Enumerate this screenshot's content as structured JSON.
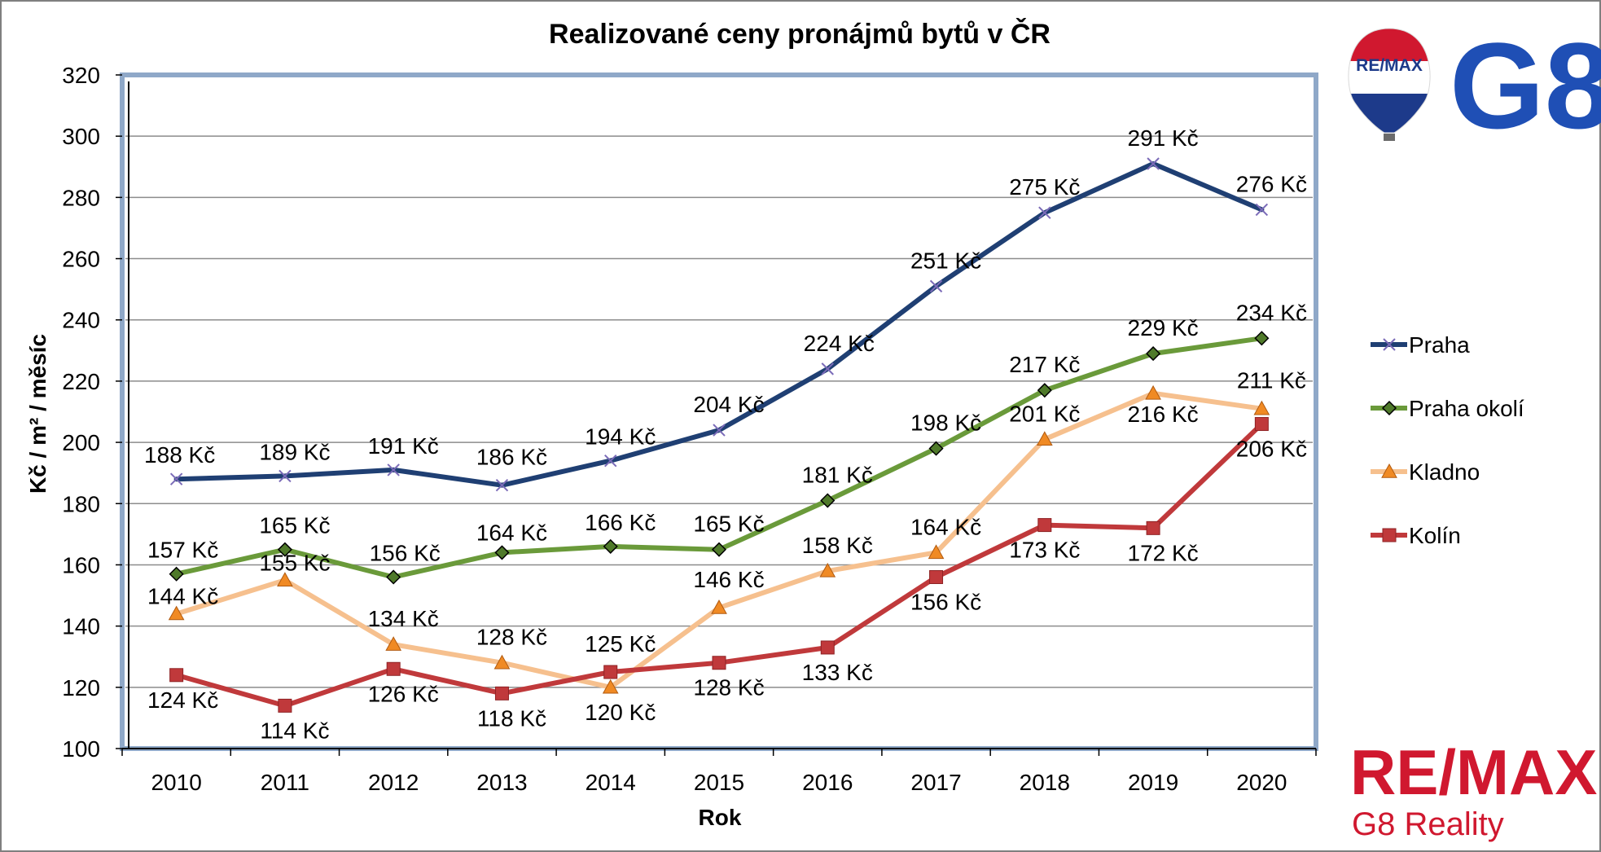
{
  "chart_data": {
    "type": "line",
    "title": "Realizované ceny pronájmů bytů v ČR",
    "xlabel": "Rok",
    "ylabel": "Kč / m² / měsíc",
    "categories": [
      "2010",
      "2011",
      "2012",
      "2013",
      "2014",
      "2015",
      "2016",
      "2017",
      "2018",
      "2019",
      "2020"
    ],
    "ylim": [
      100,
      320
    ],
    "yticks": [
      "100",
      "120",
      "140",
      "160",
      "180",
      "200",
      "220",
      "240",
      "260",
      "280",
      "300",
      "320"
    ],
    "grid": true,
    "legend_position": "right",
    "series": [
      {
        "name": "Praha",
        "color": "#1f3f73",
        "marker": "x",
        "values": [
          188,
          189,
          191,
          186,
          194,
          204,
          224,
          251,
          275,
          291,
          276
        ],
        "labels": [
          "188 Kč",
          "189 Kč",
          "191 Kč",
          "186 Kč",
          "194 Kč",
          "204 Kč",
          "224 Kč",
          "251 Kč",
          "275 Kč",
          "291 Kč",
          "276 Kč"
        ]
      },
      {
        "name": "Praha okolí",
        "color": "#6a9a3a",
        "marker": "diamond",
        "values": [
          157,
          165,
          156,
          164,
          166,
          165,
          181,
          198,
          217,
          229,
          234
        ],
        "labels": [
          "157 Kč",
          "165 Kč",
          "156 Kč",
          "164 Kč",
          "166 Kč",
          "165 Kč",
          "181 Kč",
          "198 Kč",
          "217 Kč",
          "229 Kč",
          "234 Kč"
        ]
      },
      {
        "name": "Kladno",
        "color": "#f6c08e",
        "marker": "triangle",
        "values": [
          144,
          155,
          134,
          128,
          120,
          146,
          158,
          164,
          201,
          216,
          211
        ],
        "labels": [
          "144 Kč",
          "155 Kč",
          "134 Kč",
          "128 Kč",
          "120 Kč",
          "146 Kč",
          "158 Kč",
          "164 Kč",
          "201 Kč",
          "216 Kč",
          "211 Kč"
        ]
      },
      {
        "name": "Kolín",
        "color": "#c0393b",
        "marker": "square",
        "values": [
          124,
          114,
          126,
          118,
          125,
          128,
          133,
          156,
          173,
          172,
          206
        ],
        "labels": [
          "124 Kč",
          "114 Kč",
          "126 Kč",
          "118 Kč",
          "125 Kč",
          "128 Kč",
          "133 Kč",
          "156 Kč",
          "173 Kč",
          "172 Kč",
          "206 Kč"
        ]
      }
    ]
  },
  "logos": {
    "balloon_text": "RE/MAX",
    "g8_text": "G8",
    "brand_text": "RE/MAX",
    "brand_subtext": "G8 Reality",
    "brand_color": "#d0182f",
    "g8_color": "#1f4fb5"
  }
}
